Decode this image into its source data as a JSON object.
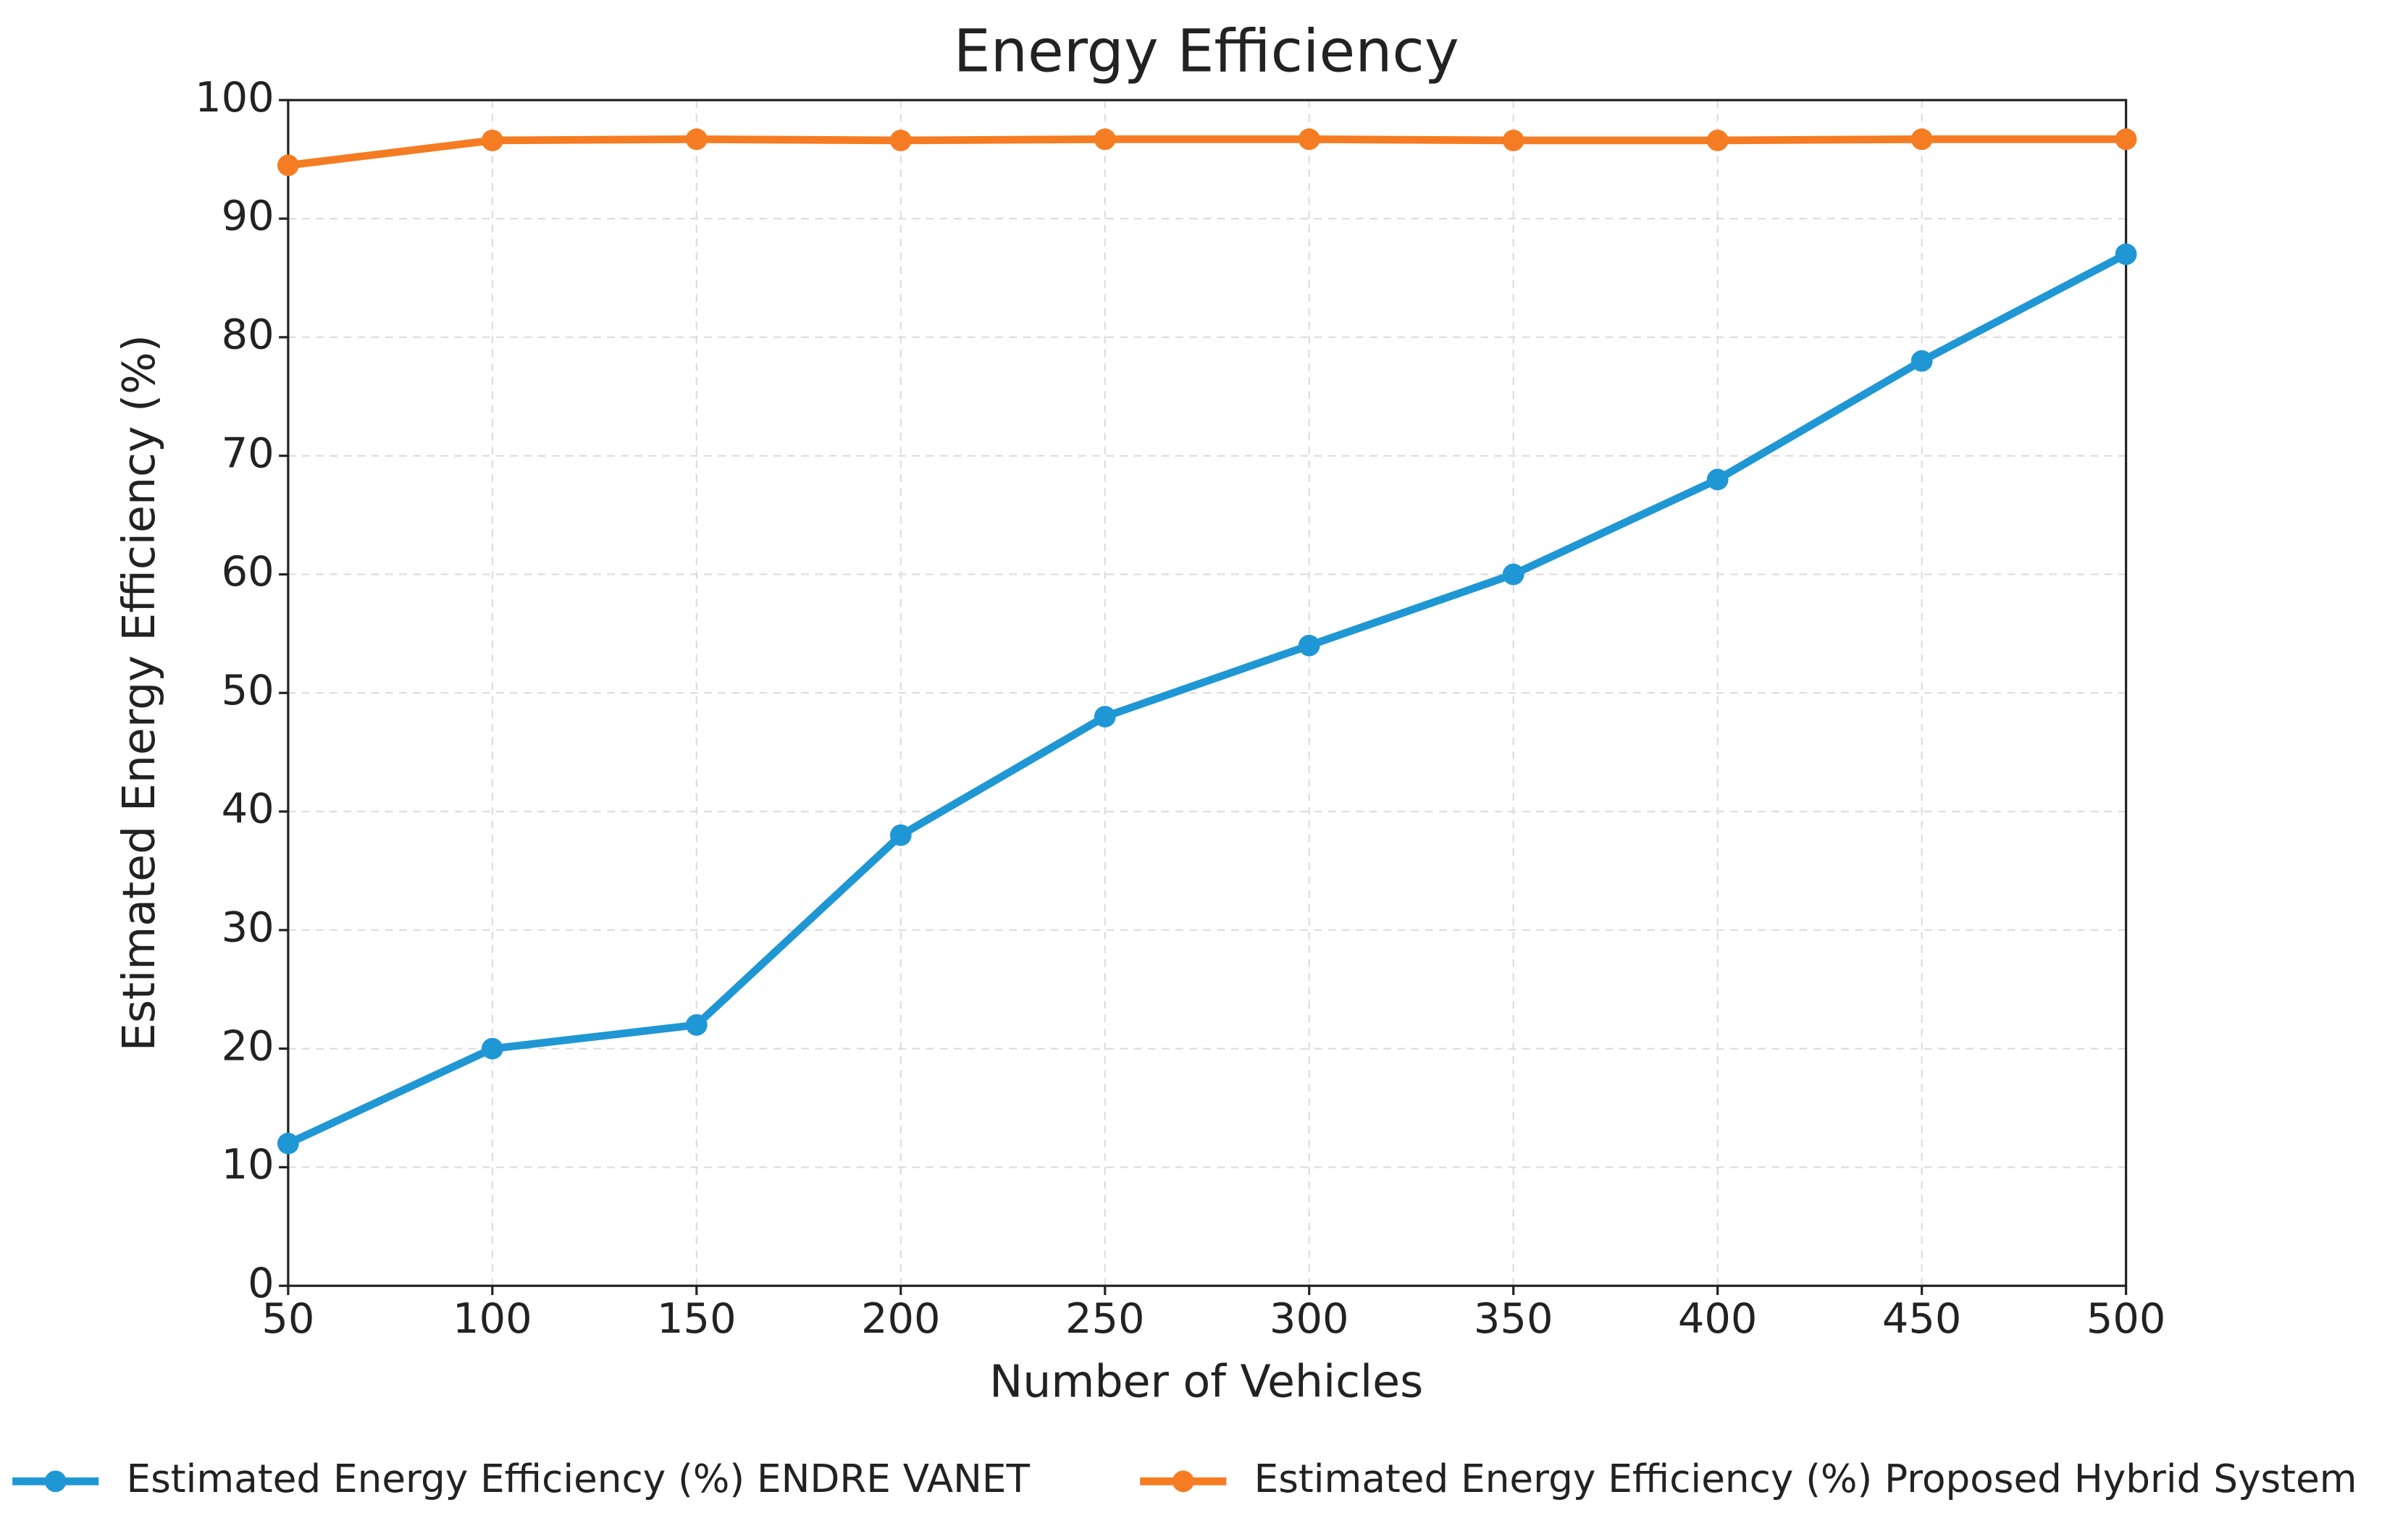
{
  "chart_data": {
    "type": "line",
    "title": "Energy Efficiency",
    "x_label": "Number of Vehicles",
    "y_label": "Estimated Energy Efficiency (%)",
    "x": [
      50,
      100,
      150,
      200,
      250,
      300,
      350,
      400,
      450,
      500
    ],
    "series": [
      {
        "name": "Estimated Energy Efficiency (%) ENDRE VANET",
        "color": "#1f97d4",
        "values": [
          12,
          20,
          22,
          38,
          48,
          54,
          60,
          68,
          78,
          87
        ]
      },
      {
        "name": "Estimated Energy Efficiency (%) Proposed Hybrid System",
        "color": "#f57c22",
        "values": [
          94.5,
          96.6,
          96.7,
          96.6,
          96.7,
          96.7,
          96.6,
          96.6,
          96.7,
          96.7
        ]
      }
    ],
    "xlim": [
      50,
      500
    ],
    "ylim": [
      0,
      100
    ],
    "xticks": [
      50,
      100,
      150,
      200,
      250,
      300,
      350,
      400,
      450,
      500
    ],
    "yticks": [
      0,
      10,
      20,
      30,
      40,
      50,
      60,
      70,
      80,
      90,
      100
    ],
    "grid": true,
    "legend": "bottom"
  }
}
